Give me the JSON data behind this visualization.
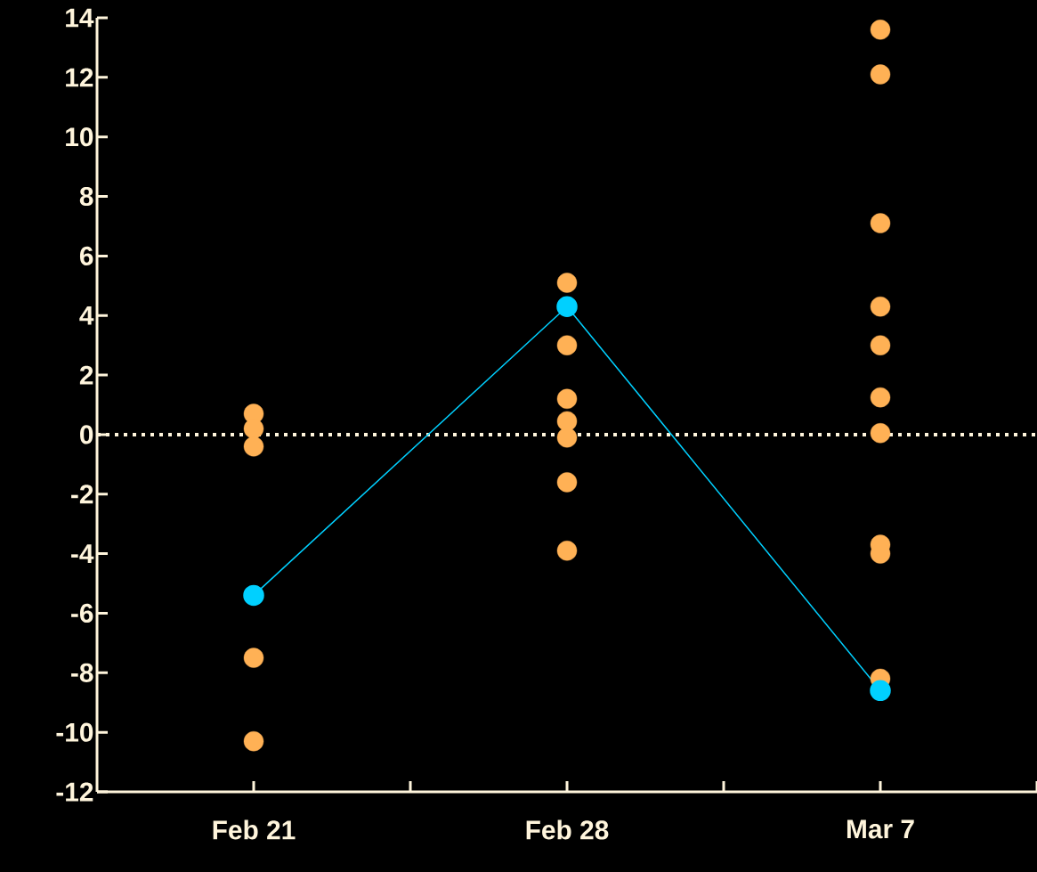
{
  "chart_data": {
    "type": "scatter",
    "categories": [
      "Feb 21",
      "Feb 28",
      "Mar 7"
    ],
    "series": [
      {
        "color": "#ffb155",
        "x": [
          "Feb 21",
          "Feb 21",
          "Feb 21",
          "Feb 21",
          "Feb 21",
          "Feb 28",
          "Feb 28",
          "Feb 28",
          "Feb 28",
          "Feb 28",
          "Feb 28",
          "Feb 28",
          "Mar 7",
          "Mar 7",
          "Mar 7",
          "Mar 7",
          "Mar 7",
          "Mar 7",
          "Mar 7",
          "Mar 7",
          "Mar 7",
          "Mar 7"
        ],
        "values": [
          0.7,
          0.2,
          -0.4,
          -7.5,
          -10.3,
          5.1,
          3.0,
          1.2,
          0.45,
          -0.1,
          -1.6,
          -3.9,
          13.6,
          12.1,
          7.1,
          4.3,
          3.0,
          1.25,
          0.05,
          -3.7,
          -4.0,
          -8.2
        ]
      },
      {
        "type": "line",
        "color": "#00d0ff",
        "values": [
          -5.4,
          4.3,
          -8.6
        ]
      }
    ],
    "ylim": [
      -12,
      14
    ],
    "yticks": [
      -12,
      -10,
      -8,
      -6,
      -4,
      -2,
      0,
      2,
      4,
      6,
      8,
      10,
      12,
      14
    ],
    "ref_lines": [
      {
        "axis": "y",
        "value": 0,
        "color": "#fff5dc",
        "line_style": "dotted"
      }
    ],
    "marker": "circle",
    "line_style": "solid",
    "grid": false
  }
}
